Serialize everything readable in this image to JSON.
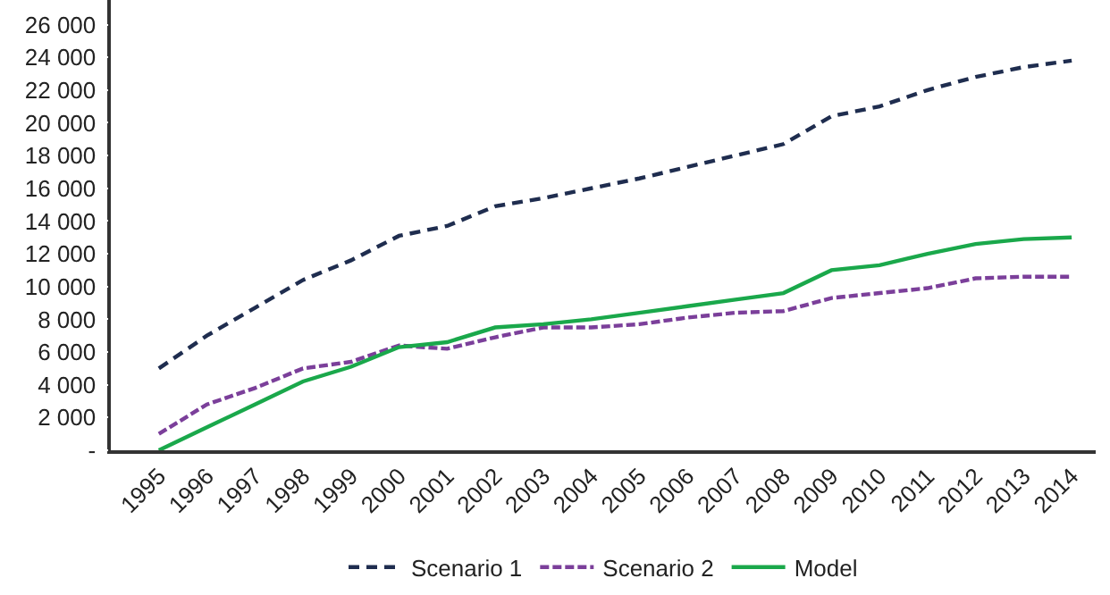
{
  "chart_data": {
    "type": "line",
    "categories": [
      "1995",
      "1996",
      "1997",
      "1998",
      "1999",
      "2000",
      "2001",
      "2002",
      "2003",
      "2004",
      "2005",
      "2006",
      "2007",
      "2008",
      "2009",
      "2010",
      "2011",
      "2012",
      "2013",
      "2014"
    ],
    "series": [
      {
        "name": "Scenario 1",
        "color": "#1f2d4f",
        "line_style": "dashed",
        "values": [
          5000,
          7000,
          8700,
          10400,
          11600,
          13100,
          13700,
          14900,
          15400,
          16000,
          16600,
          17300,
          18000,
          18700,
          20400,
          21000,
          22000,
          22800,
          23400,
          23800
        ]
      },
      {
        "name": "Scenario 2",
        "color": "#7b3f9a",
        "line_style": "dotted",
        "values": [
          1000,
          2800,
          3800,
          5000,
          5400,
          6400,
          6200,
          6900,
          7500,
          7500,
          7700,
          8100,
          8400,
          8500,
          9300,
          9600,
          9900,
          10500,
          10600,
          10600
        ]
      },
      {
        "name": "Model",
        "color": "#1aa84b",
        "line_style": "solid",
        "values": [
          0,
          1400,
          2800,
          4200,
          5100,
          6300,
          6600,
          7500,
          7700,
          8000,
          8400,
          8800,
          9200,
          9600,
          11000,
          11300,
          12000,
          12600,
          12900,
          13000
        ]
      }
    ],
    "ylim": [
      0,
      27500
    ],
    "yticks": [
      {
        "value": 0,
        "label": "-"
      },
      {
        "value": 2000,
        "label": "2 000"
      },
      {
        "value": 4000,
        "label": "4 000"
      },
      {
        "value": 6000,
        "label": "6 000"
      },
      {
        "value": 8000,
        "label": "8 000"
      },
      {
        "value": 10000,
        "label": "10 000"
      },
      {
        "value": 12000,
        "label": "12 000"
      },
      {
        "value": 14000,
        "label": "14 000"
      },
      {
        "value": 16000,
        "label": "16 000"
      },
      {
        "value": 18000,
        "label": "18 000"
      },
      {
        "value": 20000,
        "label": "20 000"
      },
      {
        "value": 22000,
        "label": "22 000"
      },
      {
        "value": 24000,
        "label": "24 000"
      },
      {
        "value": 26000,
        "label": "26 000"
      }
    ],
    "legend": "bottom",
    "marker": "none"
  }
}
